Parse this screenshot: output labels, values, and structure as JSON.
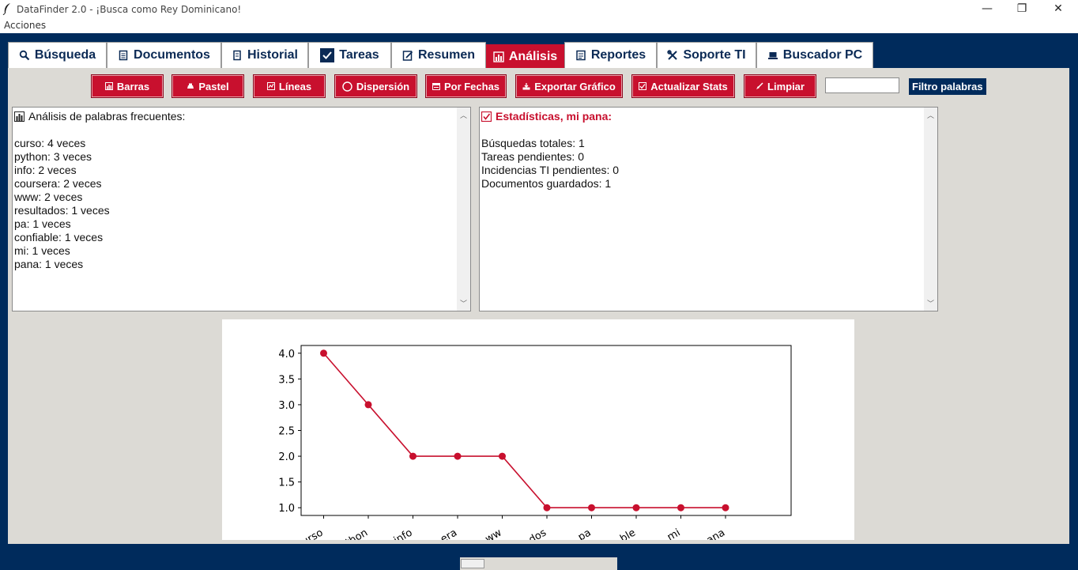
{
  "window": {
    "title": "DataFinder 2.0 - ¡Busca como Rey Dominicano!",
    "controls": {
      "minimize": "—",
      "restore": "❐",
      "close": "✕"
    }
  },
  "menu": {
    "items": [
      "Acciones"
    ]
  },
  "tabs": [
    {
      "label": "Búsqueda",
      "icon": "magnifier-icon",
      "active": false
    },
    {
      "label": "Documentos",
      "icon": "document-icon",
      "active": false
    },
    {
      "label": "Historial",
      "icon": "scroll-icon",
      "active": false
    },
    {
      "label": "Tareas",
      "icon": "checkbox-icon",
      "active": false
    },
    {
      "label": "Resumen",
      "icon": "memo-icon",
      "active": false
    },
    {
      "label": "Análisis",
      "icon": "bar-chart-icon",
      "active": true
    },
    {
      "label": "Reportes",
      "icon": "report-icon",
      "active": false
    },
    {
      "label": "Soporte TI",
      "icon": "tools-icon",
      "active": false
    },
    {
      "label": "Buscador PC",
      "icon": "laptop-icon",
      "active": false
    }
  ],
  "toolbar": {
    "buttons": [
      {
        "label": "Barras",
        "icon": "bar-chart-icon"
      },
      {
        "label": "Pastel",
        "icon": "pie-icon"
      },
      {
        "label": "Líneas",
        "icon": "line-chart-icon"
      },
      {
        "label": "Dispersión",
        "icon": "circle-icon"
      },
      {
        "label": "Por Fechas",
        "icon": "calendar-icon"
      },
      {
        "label": "Exportar Gráfico",
        "icon": "export-icon"
      },
      {
        "label": "Actualizar Stats",
        "icon": "refresh-icon"
      },
      {
        "label": "Limpiar",
        "icon": "broom-icon"
      }
    ],
    "filter_value": "",
    "filter_label": "Filtro palabras"
  },
  "word_panel": {
    "heading": "Análisis de palabras frecuentes:",
    "lines": [
      "curso: 4 veces",
      "python: 3 veces",
      "info: 2 veces",
      "coursera: 2 veces",
      "www: 2 veces",
      "resultados: 1 veces",
      "pa: 1 veces",
      "confiable: 1 veces",
      "mi: 1 veces",
      "pana: 1 veces"
    ]
  },
  "stats_panel": {
    "heading": "Estadísticas, mi pana:",
    "lines": [
      "Búsquedas totales: 1",
      "Tareas pendientes: 0",
      "Incidencias TI pendientes: 0",
      "Documentos guardados: 1"
    ]
  },
  "colors": {
    "accent": "#c8102e",
    "navy": "#002b5c",
    "panel_bg": "#dcdad5"
  },
  "chart_data": {
    "type": "line",
    "categories": [
      "curso",
      "python",
      "info",
      "coursera",
      "www",
      "resultados",
      "pa",
      "confiable",
      "mi",
      "pana"
    ],
    "tick_labels_visible": [
      "urso",
      "thon",
      "info",
      "era",
      "ww",
      "dos",
      "pa",
      "ble",
      "mi",
      "ana"
    ],
    "values": [
      4,
      3,
      2,
      2,
      2,
      1,
      1,
      1,
      1,
      1
    ],
    "yticks": [
      "1.0",
      "1.5",
      "2.0",
      "2.5",
      "3.0",
      "3.5",
      "4.0"
    ],
    "ylim": [
      0.85,
      4.15
    ],
    "color": "#c8102e",
    "grid": false
  }
}
